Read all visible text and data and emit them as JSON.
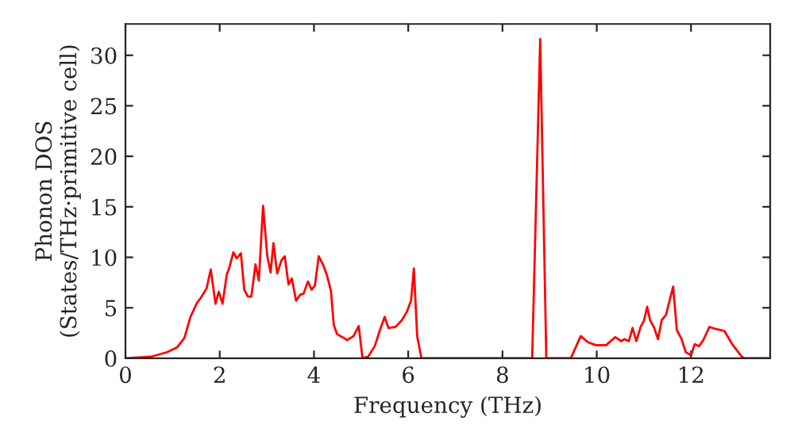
{
  "chart_data": {
    "type": "line",
    "xlabel": "Frequency (THz)",
    "ylabel": "Phonon DOS\n(States/THz·primitive cell)",
    "x": [
      0,
      0.54,
      0.88,
      1.1,
      1.25,
      1.38,
      1.52,
      1.6,
      1.72,
      1.81,
      1.91,
      1.98,
      2.06,
      2.15,
      2.2,
      2.29,
      2.36,
      2.45,
      2.52,
      2.6,
      2.67,
      2.76,
      2.83,
      2.92,
      3.01,
      3.08,
      3.14,
      3.22,
      3.31,
      3.38,
      3.46,
      3.53,
      3.62,
      3.71,
      3.78,
      3.87,
      3.95,
      4.02,
      4.1,
      4.19,
      4.27,
      4.36,
      4.42,
      4.49,
      4.64,
      4.7,
      4.84,
      4.95,
      5.03,
      5.15,
      5.29,
      5.4,
      5.5,
      5.58,
      5.73,
      5.87,
      5.97,
      6.06,
      6.12,
      6.19,
      6.28,
      8.63,
      8.8,
      8.93,
      9.45,
      9.66,
      9.81,
      9.98,
      10.2,
      10.39,
      10.52,
      10.59,
      10.68,
      10.76,
      10.84,
      10.93,
      11.0,
      11.07,
      11.13,
      11.22,
      11.3,
      11.38,
      11.47,
      11.62,
      11.7,
      11.8,
      11.89,
      12.0,
      12.08,
      12.17,
      12.26,
      12.39,
      12.53,
      12.71,
      12.86,
      13.07,
      13.14,
      13.65
    ],
    "series": [
      {
        "color": "#ff0000",
        "values": [
          0,
          0.15,
          0.6,
          1.1,
          2,
          4.1,
          5.5,
          6,
          6.9,
          8.8,
          5.4,
          6.6,
          5.4,
          8.3,
          8.9,
          10.5,
          9.9,
          10.4,
          6.8,
          6.1,
          6.1,
          9.3,
          7.7,
          15.1,
          10.1,
          8.5,
          11.4,
          8.4,
          9.7,
          10.1,
          7.3,
          7.9,
          5.7,
          6.3,
          6.4,
          7.6,
          6.8,
          7.2,
          10.1,
          9.3,
          8.3,
          6.7,
          3.3,
          2.4,
          2.0,
          1.8,
          2.2,
          3.2,
          0,
          0.16,
          1.2,
          2.8,
          4.1,
          3.0,
          3.1,
          3.8,
          4.6,
          5.7,
          8.9,
          2.2,
          0,
          0,
          31.6,
          0,
          0,
          2.2,
          1.6,
          1.3,
          1.3,
          2.1,
          1.7,
          1.9,
          1.7,
          3.0,
          1.7,
          3.1,
          3.7,
          5.1,
          3.8,
          3.0,
          1.9,
          3.8,
          4.3,
          7.1,
          2.8,
          1.9,
          0.6,
          0.3,
          1.4,
          1.2,
          1.8,
          3.1,
          2.9,
          2.7,
          1.5,
          0.2,
          0,
          0
        ]
      }
    ],
    "xlim": [
      0,
      13.68
    ],
    "ylim": [
      0,
      33.1
    ],
    "xticks": [
      0,
      2,
      4,
      6,
      8,
      10,
      12
    ],
    "yticks": [
      0,
      5,
      10,
      15,
      20,
      25,
      30
    ],
    "grid": false,
    "legend": false,
    "marker": "none",
    "line_style": "solid"
  }
}
